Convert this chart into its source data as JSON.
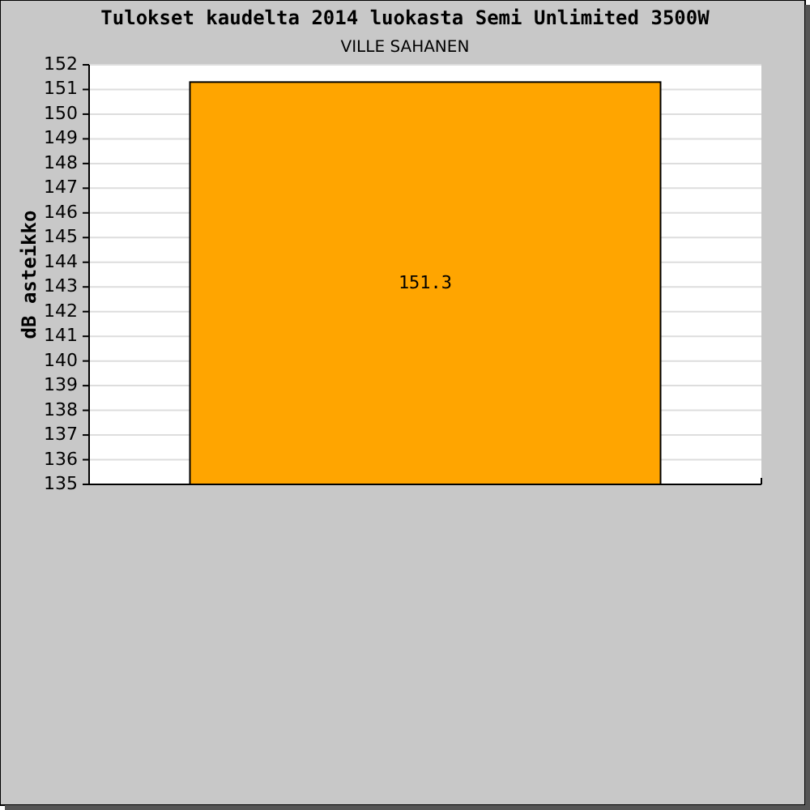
{
  "chart_data": {
    "type": "bar",
    "title": "Tulokset kaudelta 2014 luokasta Semi Unlimited 3500W",
    "subtitle": "VILLE SAHANEN",
    "ylabel": "dB asteikko",
    "categories": [
      null
    ],
    "values": [
      151.3
    ],
    "color": "#ffa500",
    "ylim": [
      135,
      152
    ],
    "yticks": [
      135,
      136,
      137,
      138,
      139,
      140,
      141,
      142,
      143,
      144,
      145,
      146,
      147,
      148,
      149,
      150,
      151,
      152
    ],
    "grid": "y",
    "data_labels": true
  }
}
